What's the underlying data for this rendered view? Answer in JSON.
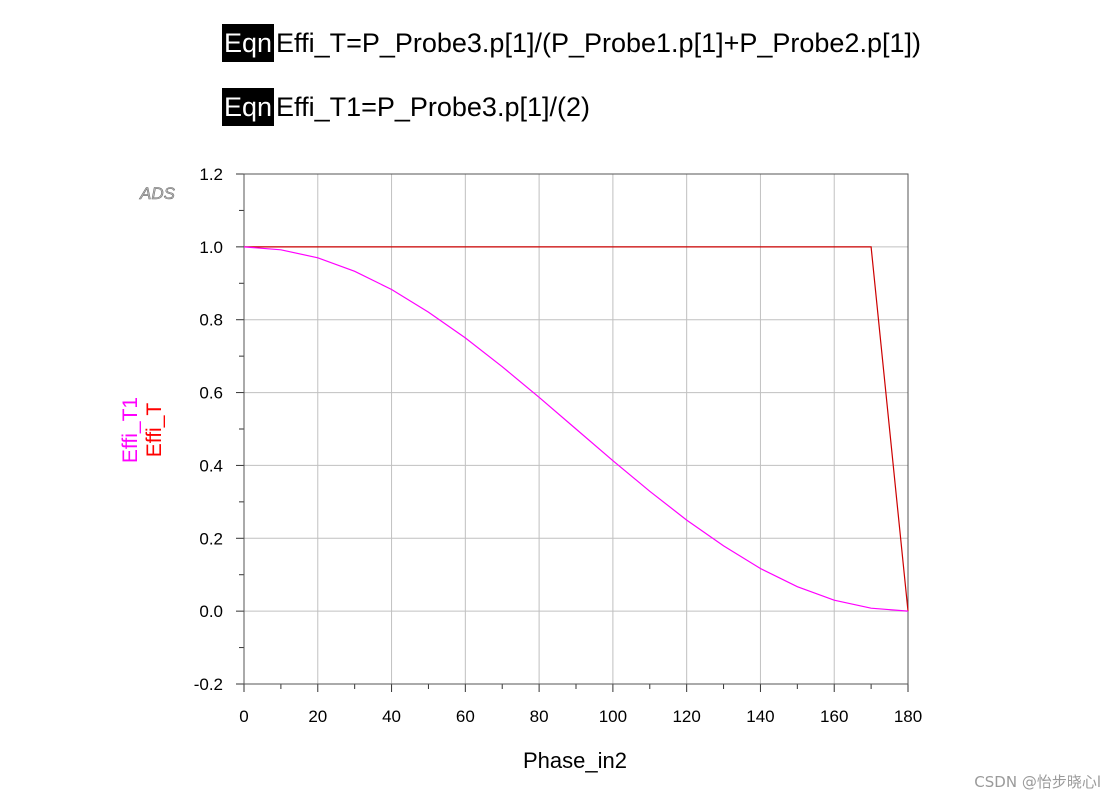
{
  "equations": [
    {
      "tag": "Eqn",
      "text": "Effi_T=P_Probe3.p[1]/(P_Probe1.p[1]+P_Probe2.p[1])"
    },
    {
      "tag": "Eqn",
      "text": "Effi_T1=P_Probe3.p[1]/(2)"
    }
  ],
  "chart_data": {
    "type": "line",
    "title": "",
    "logo": "ADS",
    "xlabel": "Phase_in2",
    "ylabels": [
      "Effi_T1",
      "Effi_T"
    ],
    "xlim": [
      0,
      180
    ],
    "ylim": [
      -0.2,
      1.2
    ],
    "x_ticks": [
      "0",
      "20",
      "40",
      "60",
      "80",
      "100",
      "120",
      "140",
      "160",
      "180"
    ],
    "y_ticks": [
      "-0.2",
      "0.0",
      "0.2",
      "0.4",
      "0.6",
      "0.8",
      "1.0",
      "1.2"
    ],
    "grid": true,
    "series": [
      {
        "name": "Effi_T",
        "color": "#cc0000",
        "x": [
          0,
          10,
          20,
          30,
          40,
          50,
          60,
          70,
          80,
          90,
          100,
          110,
          120,
          130,
          140,
          150,
          160,
          170,
          180
        ],
        "y": [
          1.0,
          1.0,
          1.0,
          1.0,
          1.0,
          1.0,
          1.0,
          1.0,
          1.0,
          1.0,
          1.0,
          1.0,
          1.0,
          1.0,
          1.0,
          1.0,
          1.0,
          1.0,
          0.0
        ]
      },
      {
        "name": "Effi_T1",
        "color": "#ff00ff",
        "x": [
          0,
          10,
          20,
          30,
          40,
          50,
          60,
          70,
          80,
          90,
          100,
          110,
          120,
          130,
          140,
          150,
          160,
          170,
          180
        ],
        "y": [
          1.0,
          0.992,
          0.97,
          0.933,
          0.883,
          0.821,
          0.75,
          0.671,
          0.587,
          0.5,
          0.413,
          0.329,
          0.25,
          0.179,
          0.117,
          0.067,
          0.03,
          0.008,
          0.0
        ]
      }
    ]
  },
  "watermark": "CSDN @怡步晓心l"
}
